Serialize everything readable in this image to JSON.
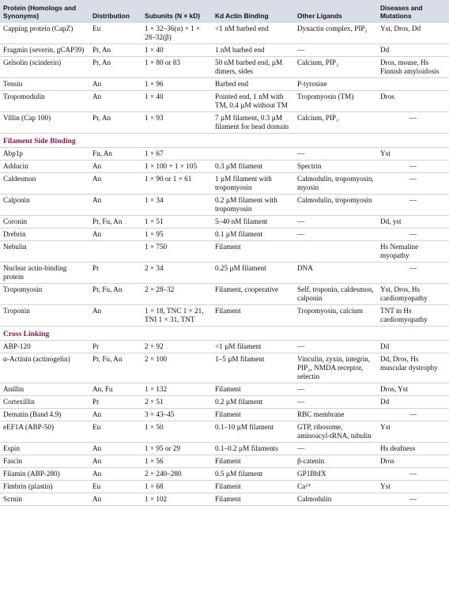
{
  "headers": {
    "protein": "Protein (Homologs and Synonyms)",
    "distribution": "Distribution",
    "subunits": "Subunits (N × kD)",
    "binding": "Kd Actin Binding",
    "ligands": "Other Ligands",
    "diseases": "Diseases and Mutations"
  },
  "sections": [
    {
      "title": "",
      "rows": [
        [
          "Capping protein (CapZ)",
          "Eu",
          "1 × 32–36(α) + 1 × 28–32(β)",
          "<1 nM barbed end",
          "Dynactin complex, PIP₂",
          "Yst, Dros, Dd"
        ],
        [
          "Fragmin (severin, gCAP39)",
          "Pr, An",
          "1 × 40",
          "1 nM barbed end",
          "—",
          "Dd"
        ],
        [
          "Gelsolin (scinderin)",
          "Pr, An",
          "1 × 80 or 83",
          "50 nM barbed end, µM dimers, sides",
          "Calcium, PIP₂",
          "Dros, mouse, Hs Finnish amyloidosis"
        ],
        [
          "Tensin",
          "An",
          "1 × 96",
          "Barbed end",
          "P-tyrosine",
          ""
        ],
        [
          "Tropomodulin",
          "An",
          "1 × 40",
          "Pointed end, 1 nM with TM, 0.4 µM without TM",
          "Tropomyosin (TM)",
          "Dros"
        ],
        [
          "Villin (Cap 100)",
          "Pr, An",
          "1 × 93",
          "7 µM filament, 0.3 µM filament for head domain",
          "Calcium, PIP₂",
          "—"
        ]
      ]
    },
    {
      "title": "Filament Side Binding",
      "rows": [
        [
          "Abp1p",
          "Fu, An",
          "1 × 67",
          "",
          "—",
          "Yst"
        ],
        [
          "Adducin",
          "An",
          "1 × 100 + 1 × 105",
          "0.3 µM filament",
          "Spectrin",
          "—"
        ],
        [
          "Caldesmon",
          "An",
          "1 × 90 or 1 × 61",
          "1 µM filament with tropomyosin",
          "Calmodulin, tropomyosin, myosin",
          "—"
        ],
        [
          "Calponin",
          "An",
          "1 × 34",
          "0.2 µM filament with tropomyosin",
          "Calmodulin, tropomyosin",
          "—"
        ],
        [
          "Coronin",
          "Pr, Fu, An",
          "1 × 51",
          "5–40 nM filament",
          "—",
          "Dd, yst"
        ],
        [
          "Drebrin",
          "An",
          "1 × 95",
          "0.1 µM filament",
          "—",
          "—"
        ],
        [
          "Nebulin",
          "",
          "1 × 750",
          "Filament",
          "",
          "Hs Nemaline myopathy"
        ],
        [
          "Nuclear actin-binding protein",
          "Pr",
          "2 × 34",
          "0.25 µM filament",
          "DNA",
          "—"
        ],
        [
          "Tropomyosin",
          "Pr, Fu, An",
          "2 × 28–32",
          "Filament, cooperative",
          "Self, troponin, caldesmon, calponin",
          "Yst, Dros, Hs cardiomyopathy"
        ],
        [
          "Troponin",
          "An",
          "1 × 18, TNC 1 × 21, TNI 1 × 31, TNT",
          "Filament",
          "Tropomyosin, calcium",
          "TNT in Hs cardiomyopathy"
        ]
      ]
    },
    {
      "title": "Cross Linking",
      "rows": [
        [
          "ABP-120",
          "Pr",
          "2 × 92",
          "<1 µM filament",
          "—",
          "Dd"
        ],
        [
          "α-Actinin (actinogelin)",
          "Pr, Fu, An",
          "2 × 100",
          "1–5 µM filament",
          "Vinculin, zyxin, integrin, PIP₂, NMDA receptor, selectin",
          "Dd, Dros, Hs muscular dystrophy"
        ],
        [
          "Anillin",
          "An, Fu",
          "1 × 132",
          "Filament",
          "—",
          "Dros, Yst"
        ],
        [
          "Cortexillin",
          "Pr",
          "2 × 51",
          "0.2 µM filament",
          "—",
          "Dd"
        ],
        [
          "Dematin (Band 4.9)",
          "An",
          "3 × 43–45",
          "Filament",
          "RBC membrane",
          "—"
        ],
        [
          "eEF1A (ABP-50)",
          "Eu",
          "1 × 50",
          "0.1–10 µM filament",
          "GTP, ribosome, aminoacyl-tRNA, tubulin",
          "Yst"
        ],
        [
          "Espin",
          "An",
          "1 × 95 or 29",
          "0.1–0.2 µM filaments",
          "—",
          "Hs deafness"
        ],
        [
          "Fascin",
          "An",
          "1 × 56",
          "Filament",
          "β-catenin",
          "Dros"
        ],
        [
          "Filamin (ABP-280)",
          "An",
          "2 × 240–280",
          "0.5 µM filament",
          "GP1BbIX",
          "—"
        ],
        [
          "Fimbrin (plastin)",
          "Eu",
          "1 × 68",
          "Filament",
          "Ca²⁺",
          "Yst"
        ],
        [
          "Scruin",
          "An",
          "1 × 102",
          "Filament",
          "Calmodulin",
          "—"
        ]
      ]
    }
  ]
}
